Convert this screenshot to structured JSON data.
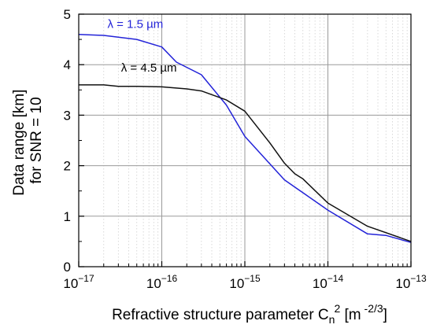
{
  "chart_data": {
    "type": "line",
    "title": "",
    "xlabel": "Refractive structure parameter C",
    "xlabel_sub": "n",
    "xlabel_sup": "2",
    "xlabel_unit_open": " [m",
    "xlabel_unit_sup": " -2/3",
    "xlabel_unit_close": "]",
    "ylabel_line1": "Data range [km]",
    "ylabel_line2": "for SNR = 10",
    "x_scale": "log",
    "xlim": [
      1e-17,
      1e-13
    ],
    "ylim": [
      0,
      5
    ],
    "x_ticks": [
      {
        "value": 1e-17,
        "base": "10",
        "exp": "−17"
      },
      {
        "value": 1e-16,
        "base": "10",
        "exp": "−16"
      },
      {
        "value": 1e-15,
        "base": "10",
        "exp": "−15"
      },
      {
        "value": 1e-14,
        "base": "10",
        "exp": "−14"
      },
      {
        "value": 1e-13,
        "base": "10",
        "exp": "−13"
      }
    ],
    "y_ticks": [
      0,
      1,
      2,
      3,
      4,
      5
    ],
    "grid": true,
    "legend": "inline labels",
    "series": [
      {
        "name": "λ = 1.5 µm",
        "color": "#2323d8",
        "x": [
          1e-17,
          2e-17,
          5e-17,
          1e-16,
          1.5e-16,
          3e-16,
          6e-16,
          1e-15,
          3e-15,
          1e-14,
          3e-14,
          5e-14,
          1e-13
        ],
        "y": [
          4.6,
          4.58,
          4.5,
          4.35,
          4.05,
          3.8,
          3.2,
          2.58,
          1.72,
          1.12,
          0.65,
          0.62,
          0.48
        ]
      },
      {
        "name": "λ = 4.5 µm",
        "color": "#111111",
        "x": [
          1e-17,
          2e-17,
          3e-17,
          5e-17,
          1e-16,
          2e-16,
          3e-16,
          6e-16,
          1e-15,
          2e-15,
          3e-15,
          4e-15,
          5e-15,
          1e-14,
          3e-14,
          1e-13
        ],
        "y": [
          3.6,
          3.6,
          3.57,
          3.57,
          3.56,
          3.52,
          3.48,
          3.3,
          3.08,
          2.45,
          2.05,
          1.84,
          1.74,
          1.26,
          0.8,
          0.5
        ]
      }
    ],
    "annotations": [
      {
        "text": "λ = 1.5 µm",
        "color": "#2323d8",
        "x": 4.8e-17,
        "y": 4.73
      },
      {
        "text": "λ = 4.5 µm",
        "color": "#000000",
        "x": 7e-17,
        "y": 3.86
      }
    ]
  }
}
